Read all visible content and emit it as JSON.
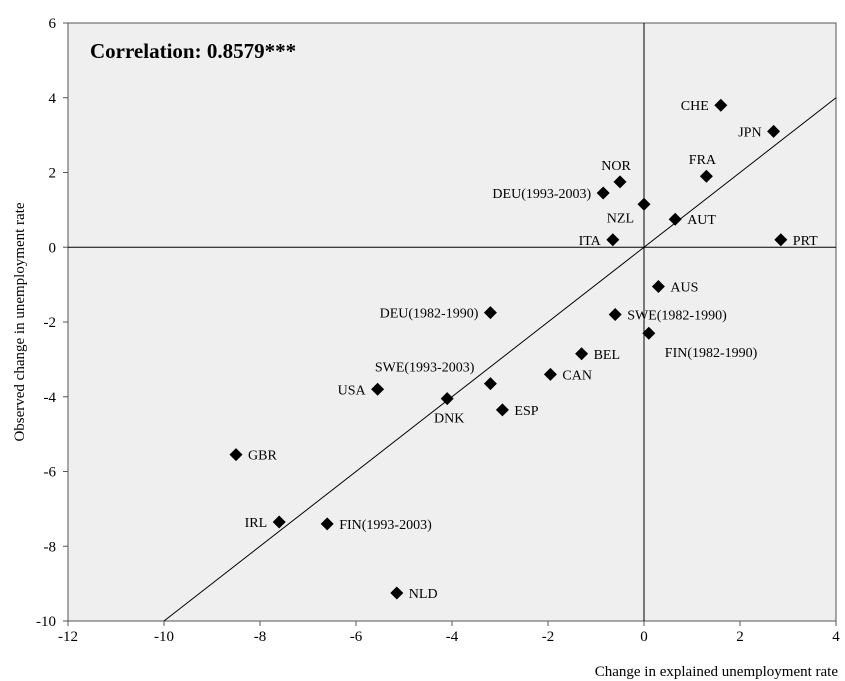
{
  "chart_data": {
    "type": "scatter",
    "title": "",
    "xlabel": "Change in explained unemployment rate",
    "ylabel": "Observed change in unemployment rate",
    "xlim": [
      -12,
      4
    ],
    "ylim": [
      -10,
      6
    ],
    "xticks": [
      "-12",
      "-10",
      "-8",
      "-6",
      "-4",
      "-2",
      "0",
      "2",
      "4"
    ],
    "yticks": [
      "-10",
      "-8",
      "-6",
      "-4",
      "-2",
      "0",
      "2",
      "4",
      "6"
    ],
    "grid": false,
    "annotation": "Correlation: 0.8579***",
    "reference_line": {
      "from": [
        -10,
        -10
      ],
      "to": [
        4,
        4
      ]
    },
    "points": [
      {
        "label": "CHE",
        "x": 1.6,
        "y": 3.8,
        "pos": "left"
      },
      {
        "label": "JPN",
        "x": 2.7,
        "y": 3.1,
        "pos": "left"
      },
      {
        "label": "NOR",
        "x": -0.5,
        "y": 1.75,
        "pos": "above"
      },
      {
        "label": "FRA",
        "x": 1.3,
        "y": 1.9,
        "pos": "above"
      },
      {
        "label": "DEU(1993-2003)",
        "x": -0.85,
        "y": 1.45,
        "pos": "left"
      },
      {
        "label": "NZL",
        "x": 0.0,
        "y": 1.15,
        "pos": "left-below"
      },
      {
        "label": "AUT",
        "x": 0.65,
        "y": 0.75,
        "pos": "right"
      },
      {
        "label": "ITA",
        "x": -0.65,
        "y": 0.2,
        "pos": "left"
      },
      {
        "label": "PRT",
        "x": 2.85,
        "y": 0.2,
        "pos": "right"
      },
      {
        "label": "AUS",
        "x": 0.3,
        "y": -1.05,
        "pos": "right"
      },
      {
        "label": "DEU(1982-1990)",
        "x": -3.2,
        "y": -1.75,
        "pos": "left"
      },
      {
        "label": "SWE(1982-1990)",
        "x": -0.6,
        "y": -1.8,
        "pos": "right"
      },
      {
        "label": "FIN(1982-1990)",
        "x": 0.1,
        "y": -2.3,
        "pos": "right-below"
      },
      {
        "label": "BEL",
        "x": -1.3,
        "y": -2.85,
        "pos": "right"
      },
      {
        "label": "CAN",
        "x": -1.95,
        "y": -3.4,
        "pos": "right"
      },
      {
        "label": "SWE(1993-2003)",
        "x": -3.2,
        "y": -3.65,
        "pos": "above-left"
      },
      {
        "label": "USA",
        "x": -5.55,
        "y": -3.8,
        "pos": "left"
      },
      {
        "label": "DNK",
        "x": -4.1,
        "y": -4.05,
        "pos": "below"
      },
      {
        "label": "ESP",
        "x": -2.95,
        "y": -4.35,
        "pos": "right"
      },
      {
        "label": "GBR",
        "x": -8.5,
        "y": -5.55,
        "pos": "right"
      },
      {
        "label": "IRL",
        "x": -7.6,
        "y": -7.35,
        "pos": "left"
      },
      {
        "label": "FIN(1993-2003)",
        "x": -6.6,
        "y": -7.4,
        "pos": "right"
      },
      {
        "label": "NLD",
        "x": -5.15,
        "y": -9.25,
        "pos": "right"
      }
    ]
  }
}
